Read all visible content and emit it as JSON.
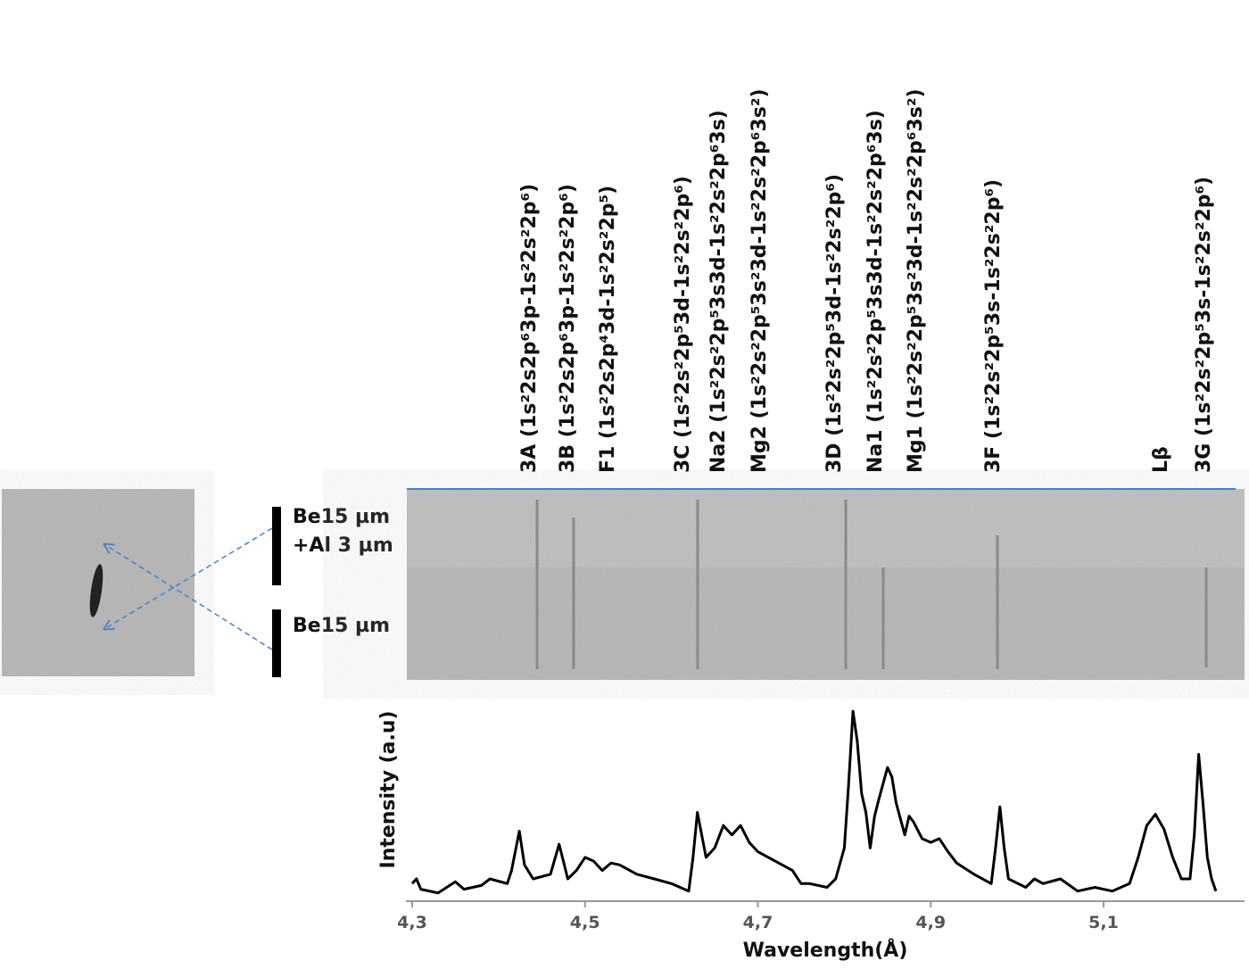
{
  "chart_data": {
    "type": "line",
    "x_label": "Wavelength(Å)",
    "y_label": "Intensity (a.u)",
    "line_labels": [
      "3A (1s²2s2p⁶3p-1s²2s²2p⁶)",
      "3B (1s²2s2p⁶3p-1s²2s²2p⁶)",
      "F1 (1s²2s2p⁴3d-1s²2s²2p⁵)",
      "3C (1s²2s²2p⁵3d-1s²2s²2p⁶)",
      "Na2 (1s²2s²2p⁵3s3d-1s²2s²2p⁶3s)",
      "Mg2 (1s²2s²2p⁵3s²3d-1s²2s²2p⁶3s²)",
      "3D (1s²2s²2p⁵3d-1s²2s²2p⁶)",
      "Na1 (1s²2s²2p⁵3s3d-1s²2s²2p⁶3s)",
      "Mg1 (1s²2s²2p⁵3s²3d-1s²2s²2p⁶3s²)",
      "3F (1s²2s²2p⁵3s-1s²2s²2p⁶)",
      "Lβ",
      "3G (1s²2s²2p⁵3s-1s²2s²2p⁶)"
    ],
    "filter_labels": [
      "Be15 µm",
      "+Al 3 µm",
      "Be15 µm"
    ],
    "x": [
      4.3,
      4.305,
      4.31,
      4.33,
      4.35,
      4.36,
      4.38,
      4.39,
      4.41,
      4.415,
      4.424,
      4.43,
      4.44,
      4.46,
      4.47,
      4.475,
      4.48,
      4.49,
      4.5,
      4.51,
      4.52,
      4.53,
      4.54,
      4.56,
      4.58,
      4.6,
      4.62,
      4.625,
      4.63,
      4.64,
      4.65,
      4.66,
      4.67,
      4.68,
      4.69,
      4.7,
      4.72,
      4.74,
      4.75,
      4.76,
      4.78,
      4.79,
      4.8,
      4.805,
      4.81,
      4.815,
      4.82,
      4.825,
      4.83,
      4.835,
      4.84,
      4.85,
      4.855,
      4.86,
      4.87,
      4.875,
      4.88,
      4.89,
      4.9,
      4.91,
      4.92,
      4.93,
      4.95,
      4.97,
      4.975,
      4.98,
      4.985,
      4.99,
      5.01,
      5.02,
      5.03,
      5.05,
      5.07,
      5.09,
      5.11,
      5.13,
      5.14,
      5.15,
      5.16,
      5.17,
      5.18,
      5.19,
      5.2,
      5.205,
      5.21,
      5.215,
      5.22,
      5.225,
      5.23
    ],
    "values": [
      0.07,
      0.095,
      0.04,
      0.02,
      0.08,
      0.04,
      0.06,
      0.095,
      0.07,
      0.14,
      0.35,
      0.17,
      0.095,
      0.12,
      0.28,
      0.19,
      0.095,
      0.14,
      0.21,
      0.19,
      0.14,
      0.18,
      0.17,
      0.12,
      0.095,
      0.07,
      0.03,
      0.21,
      0.45,
      0.21,
      0.26,
      0.38,
      0.33,
      0.38,
      0.29,
      0.24,
      0.19,
      0.14,
      0.07,
      0.07,
      0.05,
      0.095,
      0.26,
      0.6,
      0.99,
      0.83,
      0.55,
      0.45,
      0.26,
      0.43,
      0.52,
      0.69,
      0.64,
      0.5,
      0.33,
      0.43,
      0.4,
      0.31,
      0.29,
      0.31,
      0.24,
      0.18,
      0.12,
      0.07,
      0.26,
      0.48,
      0.26,
      0.095,
      0.05,
      0.095,
      0.07,
      0.095,
      0.03,
      0.05,
      0.03,
      0.07,
      0.21,
      0.38,
      0.44,
      0.36,
      0.21,
      0.095,
      0.095,
      0.33,
      0.76,
      0.5,
      0.21,
      0.095,
      0.03
    ],
    "color": "#000000",
    "xlim": [
      4.3,
      5.26
    ],
    "ylim": [
      0,
      1
    ],
    "xticks": [
      {
        "value": 4.3,
        "label": "4,3"
      },
      {
        "value": 4.5,
        "label": "4,5"
      },
      {
        "value": 4.7,
        "label": "4,7"
      },
      {
        "value": 4.9,
        "label": "4,9"
      },
      {
        "value": 5.1,
        "label": "5,1"
      }
    ]
  }
}
